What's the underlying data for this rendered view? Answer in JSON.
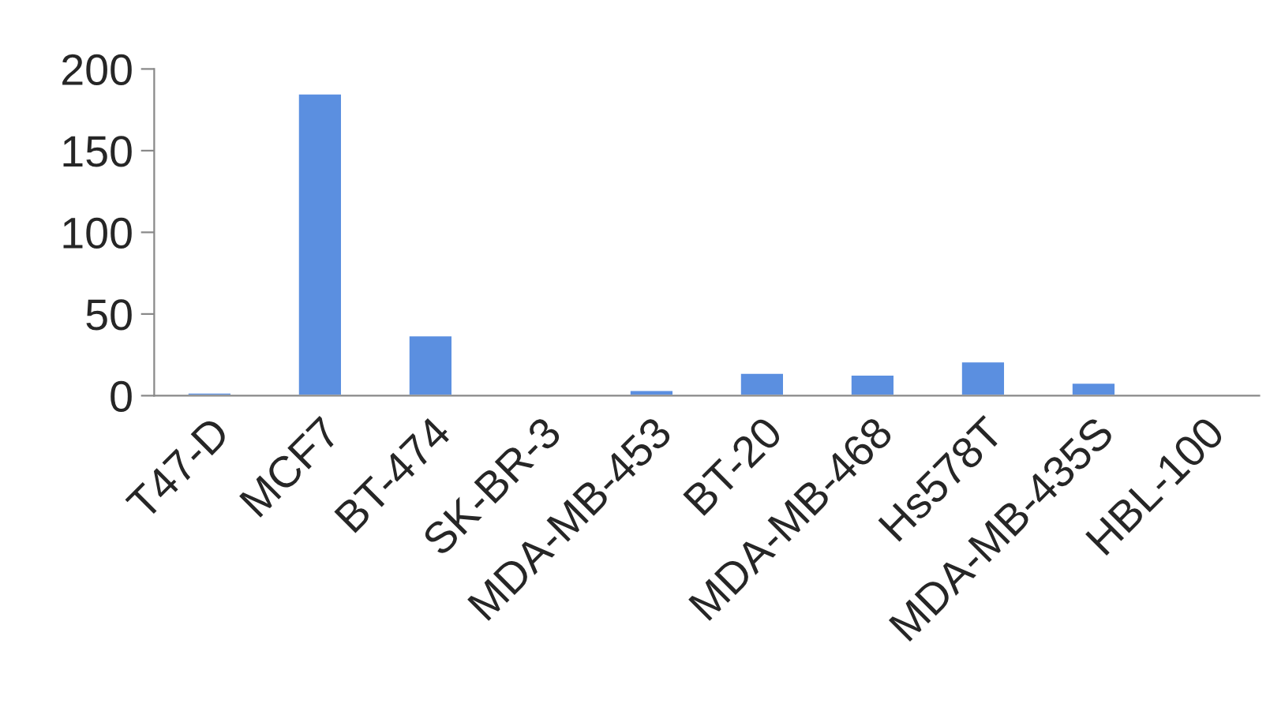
{
  "chart_data": {
    "type": "bar",
    "categories": [
      "T47-D",
      "MCF7",
      "BT-474",
      "SK-BR-3",
      "MDA-MB-453",
      "BT-20",
      "MDA-MB-468",
      "Hs578T",
      "MDA-MB-435S",
      "HBL-100"
    ],
    "values": [
      2,
      185,
      37,
      0.5,
      3.5,
      14,
      13,
      21,
      8,
      0.5
    ],
    "color": "#5b8fe0",
    "ylim": [
      0,
      200
    ],
    "yticks": [
      0,
      50,
      100,
      150,
      200
    ],
    "grid": false
  }
}
